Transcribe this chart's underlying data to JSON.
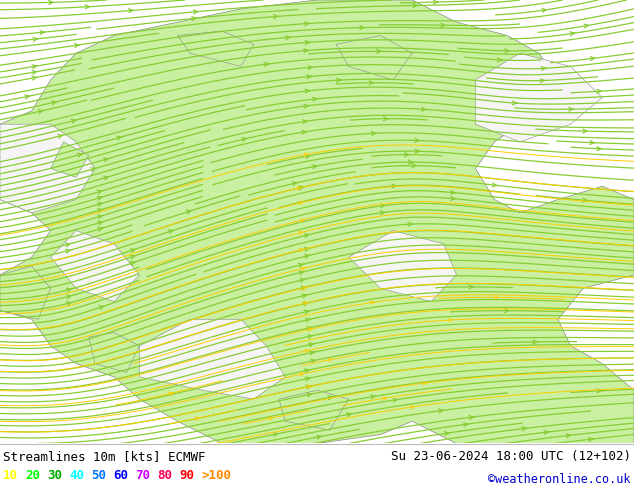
{
  "title_left": "Streamlines 10m [kts] ECMWF",
  "title_right": "Su 23-06-2024 18:00 UTC (12+102)",
  "credit": "©weatheronline.co.uk",
  "legend_values": [
    "10",
    "20",
    "30",
    "40",
    "50",
    "60",
    "70",
    "80",
    "90",
    ">100"
  ],
  "legend_colors": [
    "#ffff00",
    "#00ff00",
    "#00aa00",
    "#00ffff",
    "#0077ff",
    "#0000ff",
    "#cc00ff",
    "#ff0055",
    "#ff0000",
    "#ff8800"
  ],
  "bg_color": "#ffffff",
  "land_color": "#c8f0a0",
  "sea_color": "#f5f5f5",
  "border_color": "#888888",
  "text_color": "#000000",
  "credit_color": "#0000cc",
  "stream_green": "#88cc33",
  "stream_yellow": "#ffcc00",
  "figsize": [
    6.34,
    4.9
  ],
  "dpi": 100
}
